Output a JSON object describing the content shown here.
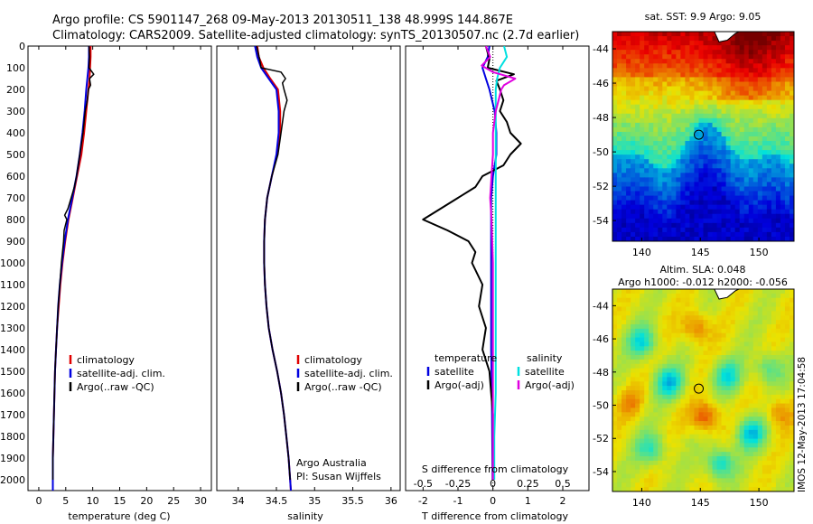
{
  "header": {
    "line1": "Argo profile: CS 5901147_268 09-May-2013 20130511_138 48.999S 144.867E",
    "line2": "Climatology: CARS2009. Satellite-adjusted climatology: synTS_20130507.nc (2.7d earlier)"
  },
  "depth_ticks": [
    "0",
    "100",
    "200",
    "300",
    "400",
    "500",
    "600",
    "700",
    "800",
    "900",
    "1000",
    "1100",
    "1200",
    "1300",
    "1400",
    "1500",
    "1600",
    "1700",
    "1800",
    "1900",
    "2000"
  ],
  "colors": {
    "climatology": "#e00000",
    "satellite": "#0000e0",
    "argo": "#000000",
    "sat_salinity": "#00e0e0",
    "argo_adj_salinity": "#e000e0"
  },
  "chart_data": [
    {
      "type": "line",
      "xlabel": "temperature (deg C)",
      "xticks": [
        "0",
        "5",
        "10",
        "15",
        "20",
        "25",
        "30"
      ],
      "xlim": [
        -2,
        32
      ],
      "ylim": [
        2050,
        0
      ],
      "legend": [
        "climatology",
        "satellite-adj. clim.",
        "Argo(..raw -QC)"
      ],
      "series": [
        {
          "name": "climatology",
          "color": "#e00000",
          "depth": [
            0,
            50,
            100,
            150,
            200,
            300,
            400,
            500,
            600,
            700,
            800,
            900,
            1000,
            1100,
            1200,
            1300,
            1400,
            1500,
            1600,
            1700,
            1800,
            1900,
            2000,
            2050
          ],
          "values": [
            9.6,
            9.6,
            9.5,
            9.4,
            9.2,
            8.8,
            8.4,
            7.9,
            7.1,
            6.3,
            5.5,
            4.9,
            4.4,
            4.0,
            3.7,
            3.4,
            3.2,
            3.0,
            2.9,
            2.8,
            2.7,
            2.6,
            2.6,
            2.6
          ]
        },
        {
          "name": "satellite-adj. clim.",
          "color": "#0000e0",
          "depth": [
            0,
            50,
            100,
            150,
            200,
            300,
            400,
            500,
            600,
            700,
            800,
            900,
            1000,
            1100,
            1200,
            1300,
            1400,
            1500,
            1600,
            1700,
            1800,
            1900,
            2000,
            2050
          ],
          "values": [
            9.3,
            9.3,
            9.2,
            9.0,
            8.8,
            8.5,
            8.1,
            7.6,
            7.0,
            6.2,
            5.4,
            4.8,
            4.3,
            3.9,
            3.6,
            3.4,
            3.2,
            3.0,
            2.9,
            2.8,
            2.7,
            2.6,
            2.6,
            2.6
          ]
        },
        {
          "name": "Argo(..raw -QC)",
          "color": "#000000",
          "depth": [
            0,
            50,
            100,
            130,
            150,
            180,
            200,
            250,
            300,
            400,
            500,
            600,
            650,
            700,
            750,
            780,
            800,
            850,
            900,
            1000,
            1100,
            1200,
            1300,
            1400,
            1500,
            1600,
            1700,
            1800,
            1900,
            2000
          ],
          "values": [
            9.3,
            9.4,
            9.3,
            10.2,
            9.4,
            9.6,
            9.2,
            9.0,
            8.6,
            8.2,
            7.6,
            7.0,
            6.6,
            6.0,
            5.4,
            4.8,
            5.2,
            4.7,
            4.6,
            4.2,
            3.9,
            3.6,
            3.4,
            3.2,
            3.0,
            2.9,
            2.8,
            2.7,
            2.6,
            2.6
          ]
        }
      ]
    },
    {
      "type": "line",
      "xlabel": "salinity",
      "xticks": [
        "34",
        "34.5",
        "35",
        "35.5",
        "36"
      ],
      "xlim": [
        33.72,
        36.12
      ],
      "ylim": [
        2050,
        0
      ],
      "legend": [
        "climatology",
        "satellite-adj. clim.",
        "Argo(..raw -QC)"
      ],
      "annotation": [
        "Argo Australia",
        "PI: Susan Wijffels"
      ],
      "series": [
        {
          "name": "climatology",
          "color": "#e00000",
          "depth": [
            0,
            50,
            100,
            150,
            200,
            300,
            400,
            500,
            600,
            700,
            800,
            900,
            1000,
            1100,
            1200,
            1300,
            1400,
            1500,
            1600,
            1700,
            1800,
            1900,
            2000,
            2050
          ],
          "values": [
            34.25,
            34.27,
            34.33,
            34.42,
            34.52,
            34.55,
            34.55,
            34.51,
            34.44,
            34.38,
            34.35,
            34.34,
            34.34,
            34.35,
            34.37,
            34.4,
            34.45,
            34.51,
            34.56,
            34.6,
            34.63,
            34.66,
            34.68,
            34.69
          ]
        },
        {
          "name": "satellite-adj. clim.",
          "color": "#0000e0",
          "depth": [
            0,
            50,
            100,
            150,
            200,
            300,
            400,
            500,
            600,
            700,
            800,
            900,
            1000,
            1100,
            1200,
            1300,
            1400,
            1500,
            1600,
            1700,
            1800,
            1900,
            2000,
            2050
          ],
          "values": [
            34.22,
            34.25,
            34.3,
            34.4,
            34.5,
            34.53,
            34.53,
            34.5,
            34.44,
            34.38,
            34.35,
            34.34,
            34.34,
            34.35,
            34.37,
            34.4,
            34.45,
            34.51,
            34.56,
            34.6,
            34.63,
            34.66,
            34.68,
            34.69
          ]
        },
        {
          "name": "Argo(..raw -QC)",
          "color": "#000000",
          "depth": [
            0,
            60,
            100,
            120,
            150,
            170,
            200,
            250,
            300,
            400,
            500,
            600,
            700,
            800,
            900,
            1000,
            1100,
            1200,
            1300,
            1400,
            1500,
            1600,
            1700,
            1800,
            1900,
            2000
          ],
          "values": [
            34.24,
            34.28,
            34.3,
            34.56,
            34.62,
            34.58,
            34.6,
            34.64,
            34.6,
            34.56,
            34.52,
            34.44,
            34.38,
            34.35,
            34.34,
            34.34,
            34.35,
            34.37,
            34.4,
            34.45,
            34.51,
            34.56,
            34.6,
            34.63,
            34.66,
            34.68
          ]
        }
      ]
    },
    {
      "type": "line",
      "xlabel": "T difference from climatology",
      "xticks": [
        "-2",
        "-1",
        "0",
        "1",
        "2"
      ],
      "xlim": [
        -2.5,
        2.75
      ],
      "x2label": "S difference from climatology",
      "x2ticks": [
        "-0.5",
        "-0.25",
        "0",
        "0.25",
        "0.5"
      ],
      "ylim": [
        2050,
        0
      ],
      "legend_t": {
        "heading": "temperature",
        "items": [
          "satellite",
          "Argo(-adj)"
        ]
      },
      "legend_s": {
        "heading": "salinity",
        "items": [
          "satellite",
          "Argo(-adj)"
        ]
      },
      "series": [
        {
          "name": "satellite",
          "axis": "T",
          "color": "#0000e0",
          "depth": [
            0,
            50,
            100,
            150,
            200,
            300,
            400,
            500,
            600,
            700,
            800,
            900,
            1000,
            1200,
            1400,
            1600,
            1800,
            2000
          ],
          "values": [
            -0.1,
            -0.15,
            -0.3,
            -0.2,
            -0.1,
            0.05,
            0.1,
            0.1,
            0.0,
            -0.05,
            -0.05,
            -0.05,
            -0.05,
            -0.05,
            -0.05,
            -0.03,
            -0.02,
            -0.01
          ]
        },
        {
          "name": "Argo(-adj)",
          "axis": "T",
          "color": "#000000",
          "depth": [
            0,
            60,
            100,
            130,
            160,
            200,
            250,
            300,
            350,
            400,
            450,
            500,
            550,
            600,
            650,
            700,
            750,
            800,
            850,
            900,
            950,
            1000,
            1100,
            1200,
            1300,
            1400,
            1500,
            1600,
            1700,
            1800,
            1900,
            2000
          ],
          "values": [
            -0.2,
            -0.1,
            -0.15,
            0.6,
            0.1,
            0.2,
            0.3,
            0.2,
            0.4,
            0.5,
            0.8,
            0.5,
            0.3,
            -0.3,
            -0.5,
            -1.0,
            -1.5,
            -2.0,
            -1.3,
            -0.7,
            -0.5,
            -0.6,
            -0.3,
            -0.4,
            -0.2,
            -0.3,
            -0.1,
            -0.05,
            0.0,
            0.0,
            0.0,
            0.0
          ]
        },
        {
          "name": "satellite",
          "axis": "S",
          "color": "#00e0e0",
          "depth": [
            0,
            50,
            80,
            100,
            150,
            200,
            300,
            400,
            500,
            600,
            700,
            800,
            900,
            1000,
            1200,
            1400,
            1600,
            1800,
            2000
          ],
          "values": [
            0.08,
            0.1,
            0.07,
            0.05,
            0.03,
            0.02,
            0.02,
            0.02,
            0.02,
            0.02,
            0.02,
            0.02,
            0.02,
            0.02,
            0.02,
            0.02,
            0.02,
            0.01,
            0.01
          ]
        },
        {
          "name": "Argo(-adj)",
          "axis": "S",
          "color": "#e000e0",
          "depth": [
            0,
            50,
            90,
            120,
            150,
            180,
            200,
            250,
            300,
            400,
            500,
            600,
            700,
            800,
            1000,
            1200,
            1400,
            1600,
            1800,
            2000
          ],
          "values": [
            -0.05,
            -0.02,
            -0.08,
            0.0,
            0.16,
            0.08,
            0.06,
            0.04,
            0.02,
            0.0,
            0.0,
            -0.01,
            -0.02,
            -0.01,
            0.0,
            0.0,
            0.0,
            0.0,
            0.0,
            0.0
          ]
        }
      ]
    },
    {
      "type": "heatmap",
      "title": "sat. SST: 9.9 Argo: 9.05",
      "xticks": [
        "140",
        "145",
        "150"
      ],
      "yticks": [
        "-44",
        "-46",
        "-48",
        "-50",
        "-52",
        "-54"
      ],
      "xlim": [
        137.5,
        153
      ],
      "ylim": [
        -55.2,
        -43
      ],
      "marker": {
        "lon": 144.867,
        "lat": -48.999
      }
    },
    {
      "type": "heatmap",
      "title": "Altim. SLA: 0.048",
      "subtitle": "Argo h1000: -0.012 h2000: -0.056",
      "xticks": [
        "140",
        "145",
        "150"
      ],
      "yticks": [
        "-44",
        "-46",
        "-48",
        "-50",
        "-52",
        "-54"
      ],
      "xlim": [
        137.5,
        153
      ],
      "ylim": [
        -55.2,
        -43
      ],
      "marker": {
        "lon": 144.867,
        "lat": -48.999
      }
    }
  ],
  "timestamp": "IMOS 12-May-2013 17:04:58"
}
